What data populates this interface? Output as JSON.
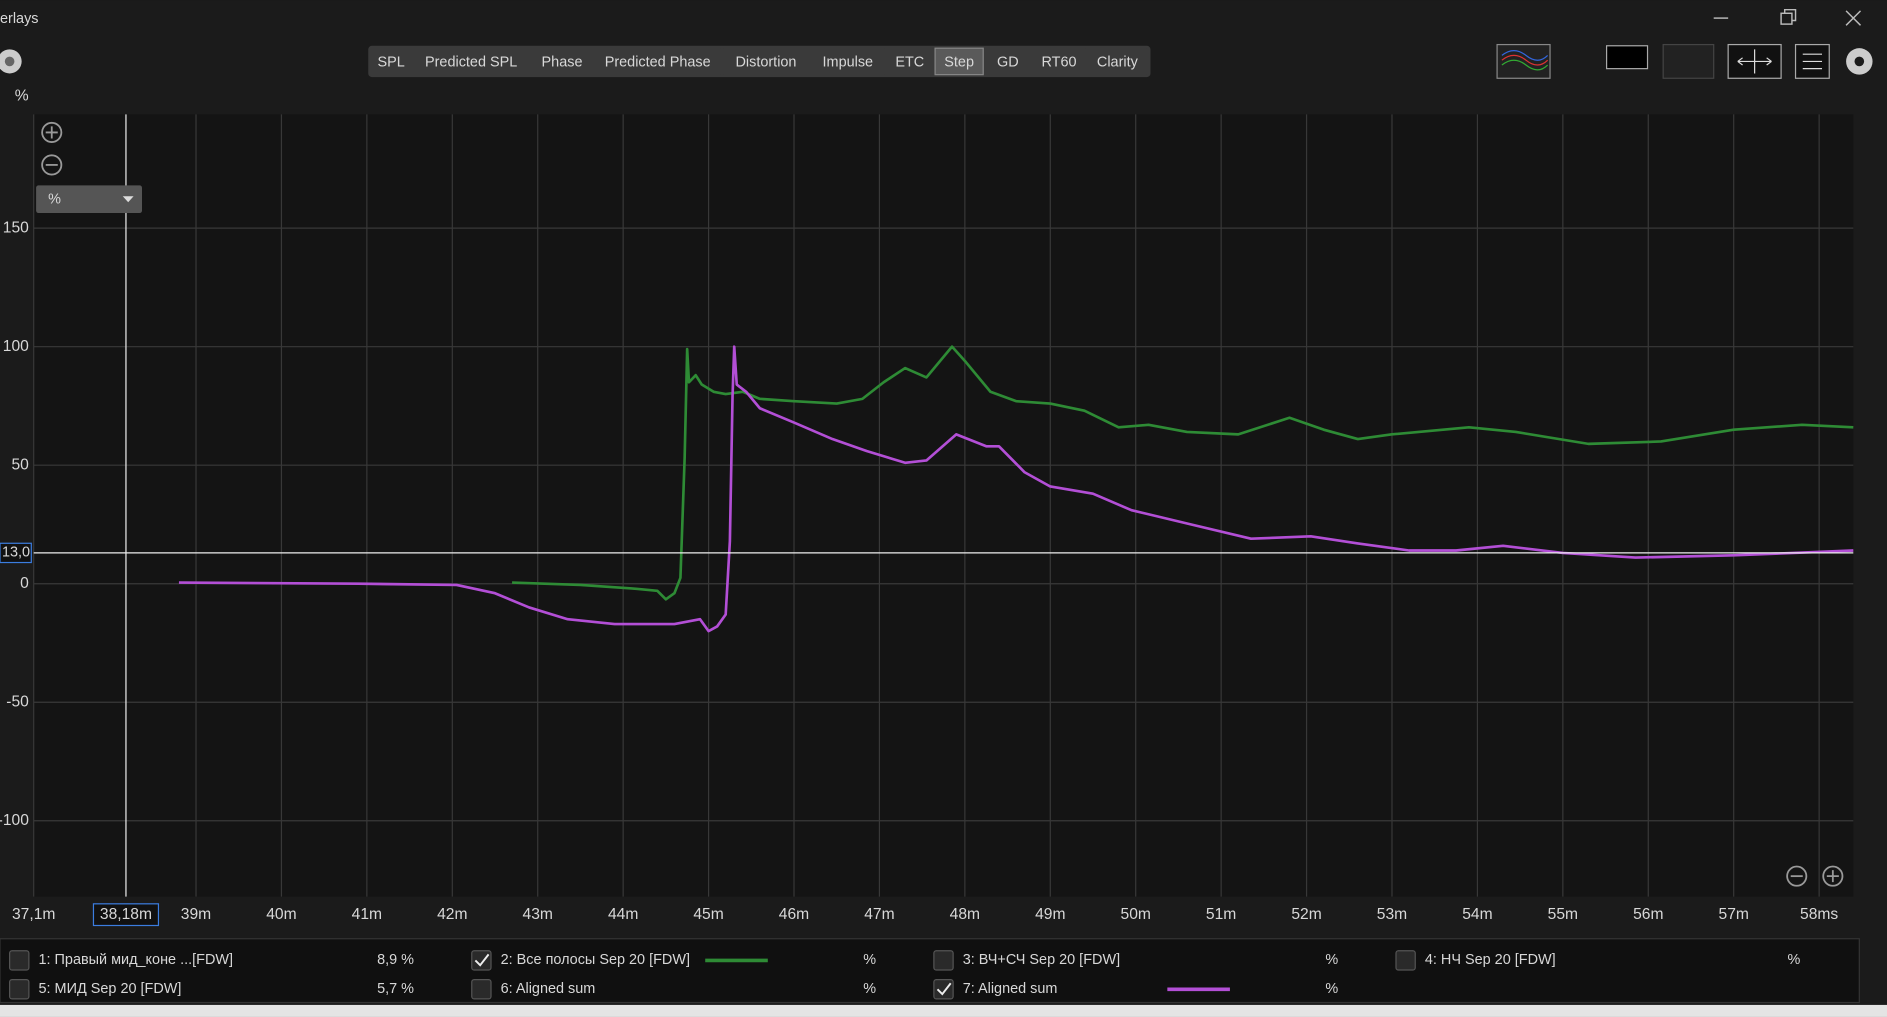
{
  "window_title": "erlays",
  "tabs": [
    {
      "label": "SPL",
      "active": false
    },
    {
      "label": "Predicted SPL",
      "active": false
    },
    {
      "label": "Phase",
      "active": false
    },
    {
      "label": "Predicted Phase",
      "active": false
    },
    {
      "label": "Distortion",
      "active": false
    },
    {
      "label": "Impulse",
      "active": false
    },
    {
      "label": "ETC",
      "active": false
    },
    {
      "label": "Step",
      "active": true
    },
    {
      "label": "GD",
      "active": false
    },
    {
      "label": "RT60",
      "active": false
    },
    {
      "label": "Clarity",
      "active": false
    }
  ],
  "unit_dropdown": "%",
  "chart_data": {
    "type": "line",
    "y_label": "%",
    "xlim": [
      37.1,
      58.4
    ],
    "ylim": [
      -132,
      198
    ],
    "xticks": [
      {
        "value": 37.1,
        "label": "37,1m"
      },
      {
        "value": 39,
        "label": "39m"
      },
      {
        "value": 40,
        "label": "40m"
      },
      {
        "value": 41,
        "label": "41m"
      },
      {
        "value": 42,
        "label": "42m"
      },
      {
        "value": 43,
        "label": "43m"
      },
      {
        "value": 44,
        "label": "44m"
      },
      {
        "value": 45,
        "label": "45m"
      },
      {
        "value": 46,
        "label": "46m"
      },
      {
        "value": 47,
        "label": "47m"
      },
      {
        "value": 48,
        "label": "48m"
      },
      {
        "value": 49,
        "label": "49m"
      },
      {
        "value": 50,
        "label": "50m"
      },
      {
        "value": 51,
        "label": "51m"
      },
      {
        "value": 52,
        "label": "52m"
      },
      {
        "value": 53,
        "label": "53m"
      },
      {
        "value": 54,
        "label": "54m"
      },
      {
        "value": 55,
        "label": "55m"
      },
      {
        "value": 56,
        "label": "56m"
      },
      {
        "value": 57,
        "label": "57m"
      },
      {
        "value": 58,
        "label": "58ms"
      }
    ],
    "yticks": [
      -100,
      -50,
      0,
      50,
      100,
      150
    ],
    "grid": true,
    "cursor": {
      "x": 38.18,
      "x_label": "38,18m",
      "y": 13.0,
      "y_label": "13,0"
    },
    "series": [
      {
        "name": "2: Все полосы Sep 20 [FDW]",
        "color": "#2e8b35",
        "readout": "%",
        "checked": true,
        "x": [
          42.7,
          43.5,
          44.1,
          44.4,
          44.5,
          44.6,
          44.67,
          44.72,
          44.75,
          44.77,
          44.85,
          44.92,
          45.06,
          45.2,
          45.4,
          45.6,
          46.0,
          46.5,
          46.8,
          47.05,
          47.3,
          47.55,
          47.85,
          48.0,
          48.3,
          48.6,
          49.0,
          49.4,
          49.8,
          50.15,
          50.6,
          51.2,
          51.8,
          52.2,
          52.6,
          53.0,
          53.9,
          54.45,
          55.3,
          56.15,
          57.0,
          57.8,
          58.4
        ],
        "values": [
          0.5,
          -0.5,
          -2,
          -3,
          -6.6,
          -4,
          2.5,
          53,
          99,
          85,
          88,
          84,
          81,
          80,
          81,
          78,
          77,
          76,
          78,
          85,
          91,
          87,
          100,
          94,
          81,
          77,
          76,
          73,
          66,
          67,
          64,
          63,
          70,
          65,
          61,
          63,
          66,
          64,
          59,
          60,
          65,
          67,
          66
        ]
      },
      {
        "name": "7: Aligned sum",
        "color": "#b34fd6",
        "readout": "%",
        "checked": true,
        "x": [
          38.8,
          40.9,
          42.05,
          42.5,
          42.9,
          43.35,
          43.9,
          44.6,
          44.9,
          45.0,
          45.1,
          45.2,
          45.25,
          45.28,
          45.3,
          45.33,
          45.44,
          45.6,
          46.0,
          46.45,
          46.85,
          47.3,
          47.55,
          47.9,
          48.25,
          48.4,
          48.7,
          49.0,
          49.5,
          49.95,
          50.65,
          51.35,
          52.05,
          52.6,
          53.2,
          53.75,
          54.3,
          55.0,
          55.85,
          57.0,
          58.4
        ],
        "values": [
          0.5,
          0,
          -0.5,
          -4,
          -10,
          -15,
          -17,
          -17,
          -15,
          -20,
          -18,
          -13,
          18,
          79,
          100,
          84,
          81,
          74,
          68,
          61,
          56,
          51,
          52,
          63,
          58,
          58,
          47,
          41,
          38,
          31,
          25,
          19,
          20,
          17,
          14,
          14,
          16,
          13,
          11,
          12,
          14
        ]
      }
    ]
  },
  "other_measurements": [
    {
      "name": "1: Правый мид_коне ...[FDW]",
      "color": "#d02424",
      "readout": "8,9 %",
      "checked": false
    },
    {
      "name": "3: ВЧ+СЧ Sep 20 [FDW]",
      "color": "#2f7fe0",
      "readout": "%",
      "checked": false
    },
    {
      "name": "4: НЧ Sep 20 [FDW]",
      "color": "#e08424",
      "readout": "%",
      "checked": false
    },
    {
      "name": "5: МИД Sep 20 [FDW]",
      "color": "#d8c020",
      "readout": "5,7 %",
      "checked": false
    },
    {
      "name": "6: Aligned sum",
      "color": "#2fc07a",
      "readout": "%",
      "checked": false
    }
  ]
}
